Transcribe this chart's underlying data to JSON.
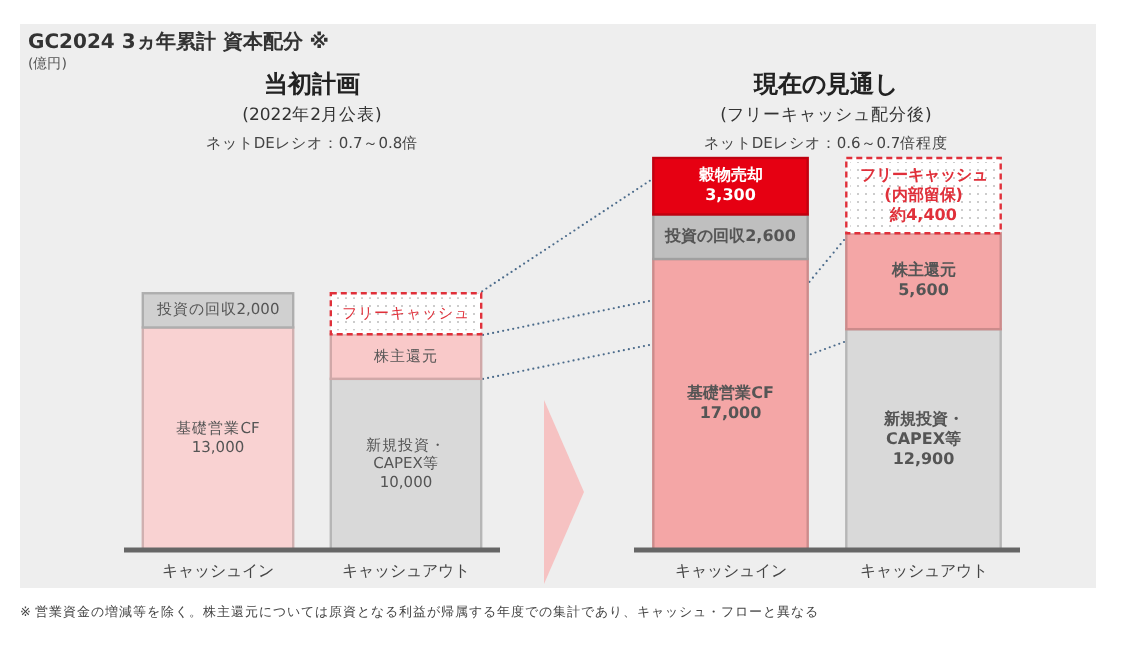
{
  "chart_data": [
    {
      "type": "bar",
      "stacked": true,
      "title": "当初計画",
      "subtitle": "(2022年2月公表)",
      "annotations": [
        "ネットDEレシオ：0.7～0.8倍",
        "GC2024 3ヵ年累計 資本配分 ※",
        "(億円)",
        "※ 営業資金の増減等を除く。株主還元については原資となる利益が帰属する年度での集計であり、キャッシュ・フローと異なる"
      ],
      "categories": [
        "キャッシュイン",
        "キャッシュアウト"
      ],
      "tick_labels": "x",
      "series": [
        {
          "colors": [
            "#f9d2d2",
            "#d9d9d9"
          ],
          "values": [
            13000,
            10000
          ],
          "value_labels": [
            "基礎営業CF\n13,000",
            "新規投資・\nCAPEX等\n10,000"
          ]
        },
        {
          "colors": [
            "#d0d0d0",
            "#f9c9c9"
          ],
          "values": [
            2000,
            2600
          ],
          "value_labels": [
            "投資の回収2,000",
            "株主還元"
          ]
        },
        {
          "colors": [
            null,
            "#ffffff"
          ],
          "values": [
            null,
            2400
          ],
          "value_labels": [
            null,
            "フリーキャッシュ"
          ]
        }
      ]
    },
    {
      "type": "bar",
      "stacked": true,
      "title": "現在の見通し",
      "subtitle": "(フリーキャッシュ配分後)",
      "annotations": [
        "ネットDEレシオ：0.6～0.7倍程度"
      ],
      "categories": [
        "キャッシュイン",
        "キャッシュアウト"
      ],
      "tick_labels": "x",
      "series": [
        {
          "colors": [
            "#f4a6a6",
            "#d9d9d9"
          ],
          "values": [
            17000,
            12900
          ],
          "value_labels": [
            "基礎営業CF\n17,000",
            "新規投資・\nCAPEX等\n12,900"
          ]
        },
        {
          "colors": [
            "#bfbfbf",
            "#f4a6a6"
          ],
          "values": [
            2600,
            5600
          ],
          "value_labels": [
            "投資の回収2,600",
            "株主還元\n5,600"
          ]
        },
        {
          "colors": [
            "#e60012",
            "#ffffff"
          ],
          "values": [
            3300,
            4400
          ],
          "value_labels": [
            "穀物売却\n3,300",
            "フリーキャッシュ\n(内部留保)\n約4,400"
          ]
        }
      ]
    }
  ]
}
